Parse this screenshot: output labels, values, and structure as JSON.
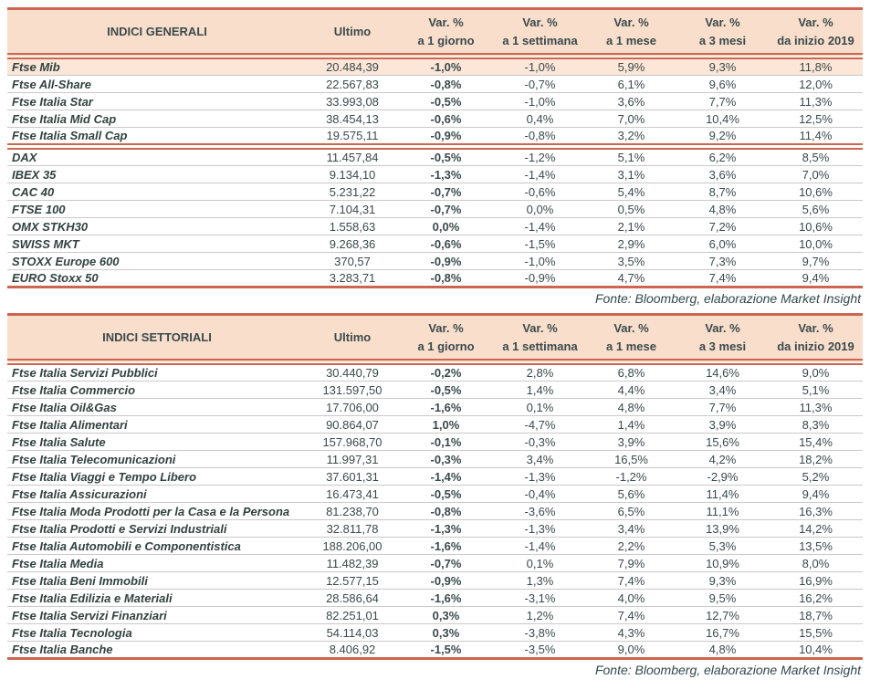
{
  "colors": {
    "accent_line": "#cc6650",
    "header_bg": "#f9decc",
    "highlight_bg": "#fbe6d7",
    "text": "#3a4a4c",
    "row_divider": "#c9c9c9"
  },
  "column_headers": {
    "ultimo": "Ultimo",
    "var_cols": [
      {
        "line1": "Var. %",
        "line2": "a 1 giorno"
      },
      {
        "line1": "Var. %",
        "line2": "a 1 settimana"
      },
      {
        "line1": "Var. %",
        "line2": "a 1 mese"
      },
      {
        "line1": "Var. %",
        "line2": "a 3 mesi"
      },
      {
        "line1": "Var. %",
        "line2": "da inizio 2019"
      }
    ]
  },
  "tables": [
    {
      "title": "INDICI GENERALI",
      "source": "Fonte: Bloomberg, elaborazione Market Insight",
      "sections": [
        {
          "rows": [
            {
              "name": "Ftse Mib",
              "ultimo": "20.484,39",
              "vars": [
                "-1,0%",
                "-1,0%",
                "5,9%",
                "9,3%",
                "11,8%"
              ],
              "highlight": true
            },
            {
              "name": "Ftse All-Share",
              "ultimo": "22.567,83",
              "vars": [
                "-0,8%",
                "-0,7%",
                "6,1%",
                "9,6%",
                "12,0%"
              ]
            },
            {
              "name": "Ftse Italia Star",
              "ultimo": "33.993,08",
              "vars": [
                "-0,5%",
                "-1,0%",
                "3,6%",
                "7,7%",
                "11,3%"
              ]
            },
            {
              "name": "Ftse Italia Mid Cap",
              "ultimo": "38.454,13",
              "vars": [
                "-0,6%",
                "0,4%",
                "7,0%",
                "10,4%",
                "12,5%"
              ]
            },
            {
              "name": "Ftse Italia Small Cap",
              "ultimo": "19.575,11",
              "vars": [
                "-0,9%",
                "-0,8%",
                "3,2%",
                "9,2%",
                "11,4%"
              ]
            }
          ]
        },
        {
          "rows": [
            {
              "name": "DAX",
              "ultimo": "11.457,84",
              "vars": [
                "-0,5%",
                "-1,2%",
                "5,1%",
                "6,2%",
                "8,5%"
              ]
            },
            {
              "name": "IBEX 35",
              "ultimo": "9.134,10",
              "vars": [
                "-1,3%",
                "-1,4%",
                "3,1%",
                "3,6%",
                "7,0%"
              ]
            },
            {
              "name": "CAC 40",
              "ultimo": "5.231,22",
              "vars": [
                "-0,7%",
                "-0,6%",
                "5,4%",
                "8,7%",
                "10,6%"
              ]
            },
            {
              "name": "FTSE 100",
              "ultimo": "7.104,31",
              "vars": [
                "-0,7%",
                "0,0%",
                "0,5%",
                "4,8%",
                "5,6%"
              ]
            },
            {
              "name": "OMX STKH30",
              "ultimo": "1.558,63",
              "vars": [
                "0,0%",
                "-1,4%",
                "2,1%",
                "7,2%",
                "10,6%"
              ]
            },
            {
              "name": "SWISS MKT",
              "ultimo": "9.268,36",
              "vars": [
                "-0,6%",
                "-1,5%",
                "2,9%",
                "6,0%",
                "10,0%"
              ]
            },
            {
              "name": "STOXX Europe 600",
              "ultimo": "370,57",
              "vars": [
                "-0,9%",
                "-1,0%",
                "3,5%",
                "7,3%",
                "9,7%"
              ]
            },
            {
              "name": "EURO Stoxx 50",
              "ultimo": "3.283,71",
              "vars": [
                "-0,8%",
                "-0,9%",
                "4,7%",
                "7,4%",
                "9,4%"
              ]
            }
          ]
        }
      ]
    },
    {
      "title": "INDICI SETTORIALI",
      "source": "Fonte: Bloomberg, elaborazione Market Insight",
      "sections": [
        {
          "rows": [
            {
              "name": "Ftse Italia Servizi Pubblici",
              "ultimo": "30.440,79",
              "vars": [
                "-0,2%",
                "2,8%",
                "6,8%",
                "14,6%",
                "9,0%"
              ]
            },
            {
              "name": "Ftse Italia Commercio",
              "ultimo": "131.597,50",
              "vars": [
                "-0,5%",
                "1,4%",
                "4,4%",
                "3,4%",
                "5,1%"
              ]
            },
            {
              "name": "Ftse Italia Oil&Gas",
              "ultimo": "17.706,00",
              "vars": [
                "-1,6%",
                "0,1%",
                "4,8%",
                "7,7%",
                "11,3%"
              ]
            },
            {
              "name": "Ftse Italia Alimentari",
              "ultimo": "90.864,07",
              "vars": [
                "1,0%",
                "-4,7%",
                "1,4%",
                "3,9%",
                "8,3%"
              ]
            },
            {
              "name": "Ftse Italia Salute",
              "ultimo": "157.968,70",
              "vars": [
                "-0,1%",
                "-0,3%",
                "3,9%",
                "15,6%",
                "15,4%"
              ]
            },
            {
              "name": "Ftse Italia Telecomunicazioni",
              "ultimo": "11.997,31",
              "vars": [
                "-0,3%",
                "3,4%",
                "16,5%",
                "4,2%",
                "18,2%"
              ]
            },
            {
              "name": "Ftse Italia Viaggi e Tempo Libero",
              "ultimo": "37.601,31",
              "vars": [
                "-1,4%",
                "-1,3%",
                "-1,2%",
                "-2,9%",
                "5,2%"
              ]
            },
            {
              "name": "Ftse Italia Assicurazioni",
              "ultimo": "16.473,41",
              "vars": [
                "-0,5%",
                "-0,4%",
                "5,6%",
                "11,4%",
                "9,4%"
              ]
            },
            {
              "name": "Ftse Italia Moda Prodotti per la Casa e la Persona",
              "ultimo": "81.238,70",
              "vars": [
                "-0,8%",
                "-3,6%",
                "6,5%",
                "11,1%",
                "16,3%"
              ]
            },
            {
              "name": "Ftse Italia Prodotti e Servizi Industriali",
              "ultimo": "32.811,78",
              "vars": [
                "-1,3%",
                "-1,3%",
                "3,4%",
                "13,9%",
                "14,2%"
              ]
            },
            {
              "name": "Ftse Italia Automobili e Componentistica",
              "ultimo": "188.206,00",
              "vars": [
                "-1,6%",
                "-1,4%",
                "2,2%",
                "5,3%",
                "13,5%"
              ]
            },
            {
              "name": "Ftse Italia Media",
              "ultimo": "11.482,39",
              "vars": [
                "-0,7%",
                "0,1%",
                "7,9%",
                "10,9%",
                "8,0%"
              ]
            },
            {
              "name": "Ftse Italia Beni Immobili",
              "ultimo": "12.577,15",
              "vars": [
                "-0,9%",
                "1,3%",
                "7,4%",
                "9,3%",
                "16,9%"
              ]
            },
            {
              "name": "Ftse Italia Edilizia e Materiali",
              "ultimo": "28.586,64",
              "vars": [
                "-1,6%",
                "-3,1%",
                "4,0%",
                "9,5%",
                "16,2%"
              ]
            },
            {
              "name": "Ftse Italia Servizi Finanziari",
              "ultimo": "82.251,01",
              "vars": [
                "0,3%",
                "1,2%",
                "7,4%",
                "12,7%",
                "18,7%"
              ]
            },
            {
              "name": "Ftse Italia Tecnologia",
              "ultimo": "54.114,03",
              "vars": [
                "0,3%",
                "-3,8%",
                "4,3%",
                "16,7%",
                "15,5%"
              ]
            },
            {
              "name": "Ftse Italia Banche",
              "ultimo": "8.406,92",
              "vars": [
                "-1,5%",
                "-3,5%",
                "9,0%",
                "4,8%",
                "10,4%"
              ]
            }
          ]
        }
      ]
    }
  ]
}
